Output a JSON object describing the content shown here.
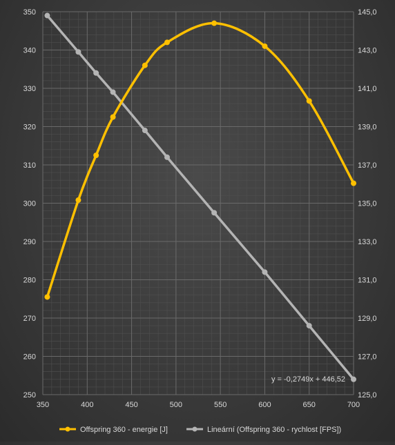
{
  "chart_data": {
    "type": "line",
    "title": "",
    "xlabel": "",
    "ylabel": "",
    "y2label": "",
    "x_ticks": [
      "350",
      "400",
      "450",
      "500",
      "550",
      "600",
      "650",
      "700"
    ],
    "y_ticks": [
      "250",
      "260",
      "270",
      "280",
      "290",
      "300",
      "310",
      "320",
      "330",
      "340",
      "350"
    ],
    "y2_ticks": [
      "125,0",
      "127,0",
      "129,0",
      "131,0",
      "133,0",
      "135,0",
      "137,0",
      "139,0",
      "141,0",
      "143,0",
      "145,0"
    ],
    "xlim": [
      350,
      700
    ],
    "ylim": [
      250,
      350
    ],
    "y2lim": [
      125,
      145
    ],
    "grid": true,
    "legend_position": "bottom",
    "series": [
      {
        "name": "Offspring 360  - energie [J]",
        "axis": "left",
        "color": "#ffc000",
        "smooth": true,
        "markers": true,
        "x": [
          355,
          390,
          410,
          429,
          465,
          490,
          543,
          600,
          650,
          700
        ],
        "y": [
          275.5,
          300.8,
          312.5,
          322.5,
          336,
          342,
          347,
          341,
          326.7,
          305.2
        ]
      },
      {
        "name": "Lineární (Offspring 360 - rychlost [FPS])",
        "axis": "right",
        "color": "#b4b4b4",
        "smooth": false,
        "markers": true,
        "x": [
          355,
          390,
          410,
          429,
          465,
          490,
          543,
          600,
          650,
          700
        ],
        "y": [
          144.8,
          142.9,
          141.8,
          140.8,
          138.8,
          137.4,
          134.5,
          131.4,
          128.6,
          125.8
        ]
      }
    ],
    "annotation": "y = -0,2749x + 446,52"
  }
}
